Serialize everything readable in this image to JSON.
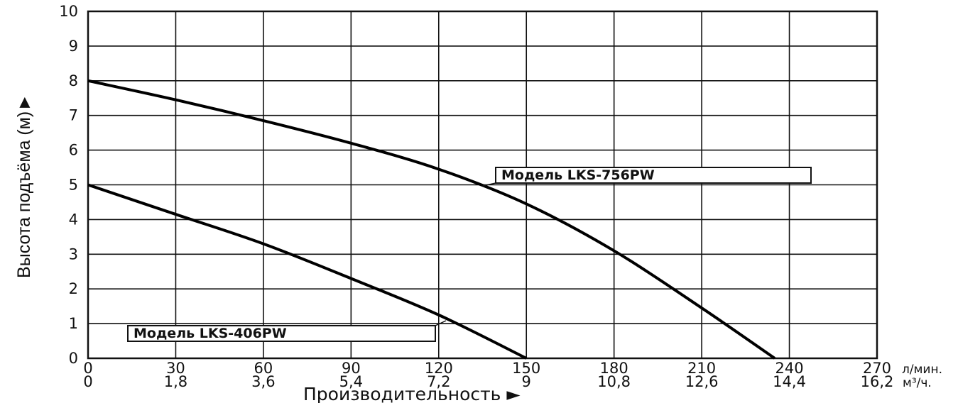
{
  "chart_data": {
    "type": "line",
    "title": "",
    "xlabel": "Производительность ►",
    "ylabel": "Высота подъёма (м)►",
    "x_unit_primary": "л/мин.",
    "x_unit_secondary": "м³/ч.",
    "x_ticks_primary": [
      "0",
      "30",
      "60",
      "90",
      "120",
      "150",
      "180",
      "210",
      "240",
      "270"
    ],
    "x_ticks_secondary": [
      "0",
      "1,8",
      "3,6",
      "5,4",
      "7,2",
      "9",
      "10,8",
      "12,6",
      "14,4",
      "16,2"
    ],
    "y_ticks": [
      "0",
      "1",
      "2",
      "3",
      "4",
      "5",
      "6",
      "7",
      "8",
      "9",
      "10"
    ],
    "xlim": [
      0,
      270
    ],
    "ylim": [
      0,
      10
    ],
    "grid": true,
    "series": [
      {
        "name": "Модель LKS-756PW",
        "x": [
          0,
          30,
          60,
          90,
          120,
          150,
          180,
          210,
          235
        ],
        "y": [
          8.0,
          7.45,
          6.85,
          6.2,
          5.45,
          4.45,
          3.1,
          1.45,
          0
        ]
      },
      {
        "name": "Модель LKS-406PW",
        "x": [
          0,
          30,
          60,
          90,
          120,
          150
        ],
        "y": [
          5.0,
          4.15,
          3.3,
          2.3,
          1.25,
          0
        ]
      }
    ]
  }
}
